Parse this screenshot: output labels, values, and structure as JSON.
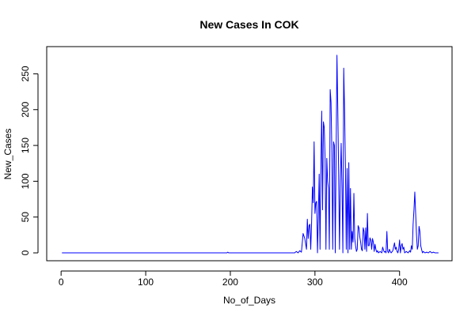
{
  "chart_data": {
    "type": "line",
    "title": "New Cases In COK",
    "xlabel": "No_of_Days",
    "ylabel": "New_Cases",
    "xlim": [
      -17,
      462
    ],
    "ylim": [
      -11,
      288
    ],
    "x_ticks": [
      0,
      100,
      200,
      300,
      400
    ],
    "y_ticks": [
      0,
      50,
      100,
      150,
      200,
      250
    ],
    "grid": false,
    "line_color": "#0000ff",
    "series": [
      {
        "points": [
          [
            1,
            0
          ],
          [
            100,
            0
          ],
          [
            196,
            0
          ],
          [
            197,
            1
          ],
          [
            198,
            0
          ],
          [
            276,
            0
          ],
          [
            278,
            2
          ],
          [
            280,
            0
          ],
          [
            282,
            3
          ],
          [
            284,
            1
          ],
          [
            286,
            27
          ],
          [
            288,
            20
          ],
          [
            290,
            5
          ],
          [
            291,
            47
          ],
          [
            292,
            20
          ],
          [
            293,
            38
          ],
          [
            294,
            40
          ],
          [
            295,
            5
          ],
          [
            296,
            40
          ],
          [
            297,
            92
          ],
          [
            298,
            70
          ],
          [
            299,
            155
          ],
          [
            300,
            55
          ],
          [
            301,
            70
          ],
          [
            302,
            72
          ],
          [
            303,
            0
          ],
          [
            304,
            50
          ],
          [
            305,
            110
          ],
          [
            306,
            5
          ],
          [
            307,
            120
          ],
          [
            308,
            198
          ],
          [
            309,
            60
          ],
          [
            310,
            183
          ],
          [
            311,
            175
          ],
          [
            312,
            130
          ],
          [
            313,
            5
          ],
          [
            314,
            132
          ],
          [
            315,
            100
          ],
          [
            316,
            90
          ],
          [
            317,
            5
          ],
          [
            318,
            228
          ],
          [
            319,
            210
          ],
          [
            320,
            140
          ],
          [
            321,
            5
          ],
          [
            322,
            155
          ],
          [
            323,
            150
          ],
          [
            324,
            0
          ],
          [
            325,
            135
          ],
          [
            326,
            276
          ],
          [
            327,
            200
          ],
          [
            328,
            110
          ],
          [
            329,
            5
          ],
          [
            330,
            100
          ],
          [
            331,
            153
          ],
          [
            332,
            90
          ],
          [
            333,
            0
          ],
          [
            334,
            258
          ],
          [
            335,
            200
          ],
          [
            336,
            120
          ],
          [
            337,
            5
          ],
          [
            338,
            118
          ],
          [
            339,
            0
          ],
          [
            340,
            126
          ],
          [
            341,
            5
          ],
          [
            342,
            90
          ],
          [
            343,
            5
          ],
          [
            344,
            30
          ],
          [
            345,
            15
          ],
          [
            346,
            83
          ],
          [
            347,
            20
          ],
          [
            348,
            10
          ],
          [
            349,
            2
          ],
          [
            350,
            5
          ],
          [
            351,
            38
          ],
          [
            352,
            35
          ],
          [
            353,
            22
          ],
          [
            354,
            15
          ],
          [
            355,
            5
          ],
          [
            356,
            3
          ],
          [
            357,
            35
          ],
          [
            358,
            30
          ],
          [
            359,
            5
          ],
          [
            360,
            35
          ],
          [
            361,
            2
          ],
          [
            362,
            55
          ],
          [
            363,
            10
          ],
          [
            364,
            10
          ],
          [
            365,
            21
          ],
          [
            366,
            18
          ],
          [
            367,
            5
          ],
          [
            368,
            20
          ],
          [
            369,
            15
          ],
          [
            370,
            2
          ],
          [
            371,
            12
          ],
          [
            372,
            5
          ],
          [
            373,
            1
          ],
          [
            374,
            3
          ],
          [
            375,
            0
          ],
          [
            377,
            2
          ],
          [
            379,
            0
          ],
          [
            380,
            8
          ],
          [
            381,
            4
          ],
          [
            382,
            1
          ],
          [
            383,
            2
          ],
          [
            384,
            0
          ],
          [
            385,
            30
          ],
          [
            386,
            2
          ],
          [
            387,
            0
          ],
          [
            388,
            5
          ],
          [
            389,
            2
          ],
          [
            390,
            0
          ],
          [
            392,
            3
          ],
          [
            394,
            14
          ],
          [
            395,
            5
          ],
          [
            396,
            8
          ],
          [
            397,
            2
          ],
          [
            398,
            0
          ],
          [
            399,
            5
          ],
          [
            400,
            18
          ],
          [
            401,
            0
          ],
          [
            402,
            10
          ],
          [
            403,
            13
          ],
          [
            404,
            5
          ],
          [
            405,
            8
          ],
          [
            406,
            0
          ],
          [
            408,
            2
          ],
          [
            410,
            0
          ],
          [
            412,
            3
          ],
          [
            413,
            1
          ],
          [
            414,
            10
          ],
          [
            415,
            5
          ],
          [
            416,
            40
          ],
          [
            417,
            60
          ],
          [
            418,
            85
          ],
          [
            419,
            55
          ],
          [
            420,
            25
          ],
          [
            421,
            5
          ],
          [
            422,
            10
          ],
          [
            423,
            37
          ],
          [
            424,
            30
          ],
          [
            425,
            10
          ],
          [
            426,
            5
          ],
          [
            427,
            0
          ],
          [
            428,
            2
          ],
          [
            430,
            0
          ],
          [
            432,
            1
          ],
          [
            434,
            0
          ],
          [
            436,
            2
          ],
          [
            438,
            0
          ],
          [
            440,
            1
          ],
          [
            442,
            0
          ],
          [
            444,
            0
          ],
          [
            446,
            0
          ]
        ]
      }
    ]
  }
}
